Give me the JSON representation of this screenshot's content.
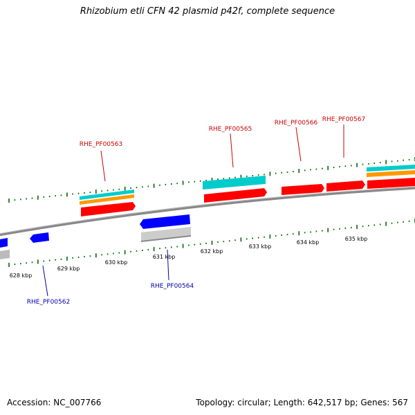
{
  "title": "Rhizobium etli CFN 42 plasmid p42f, complete sequence",
  "footer": {
    "accession_label": "Accession: NC_007766",
    "summary": "Topology: circular; Length: 642,517 bp; Genes: 567"
  },
  "colors": {
    "forward_gene": "#ff0000",
    "reverse_gene": "#0000ff",
    "forward_label": "#cc0000",
    "reverse_label": "#0000aa",
    "cds_cyan": "#00cccc",
    "cds_orange": "#ff9900",
    "gray": "#aaaaaa",
    "ticks": "#006600",
    "backbone": "#888888"
  },
  "scale": {
    "unit": "kbp",
    "labels": [
      "628 kbp",
      "629 kbp",
      "630 kbp",
      "631 kbp",
      "632 kbp",
      "633 kbp",
      "634 kbp",
      "635 kbp"
    ]
  },
  "genes": {
    "forward": [
      "RHE_PF00563",
      "RHE_PF00565",
      "RHE_PF00566",
      "RHE_PF00567"
    ],
    "reverse": [
      "RHE_PF00562",
      "RHE_PF00564"
    ]
  }
}
